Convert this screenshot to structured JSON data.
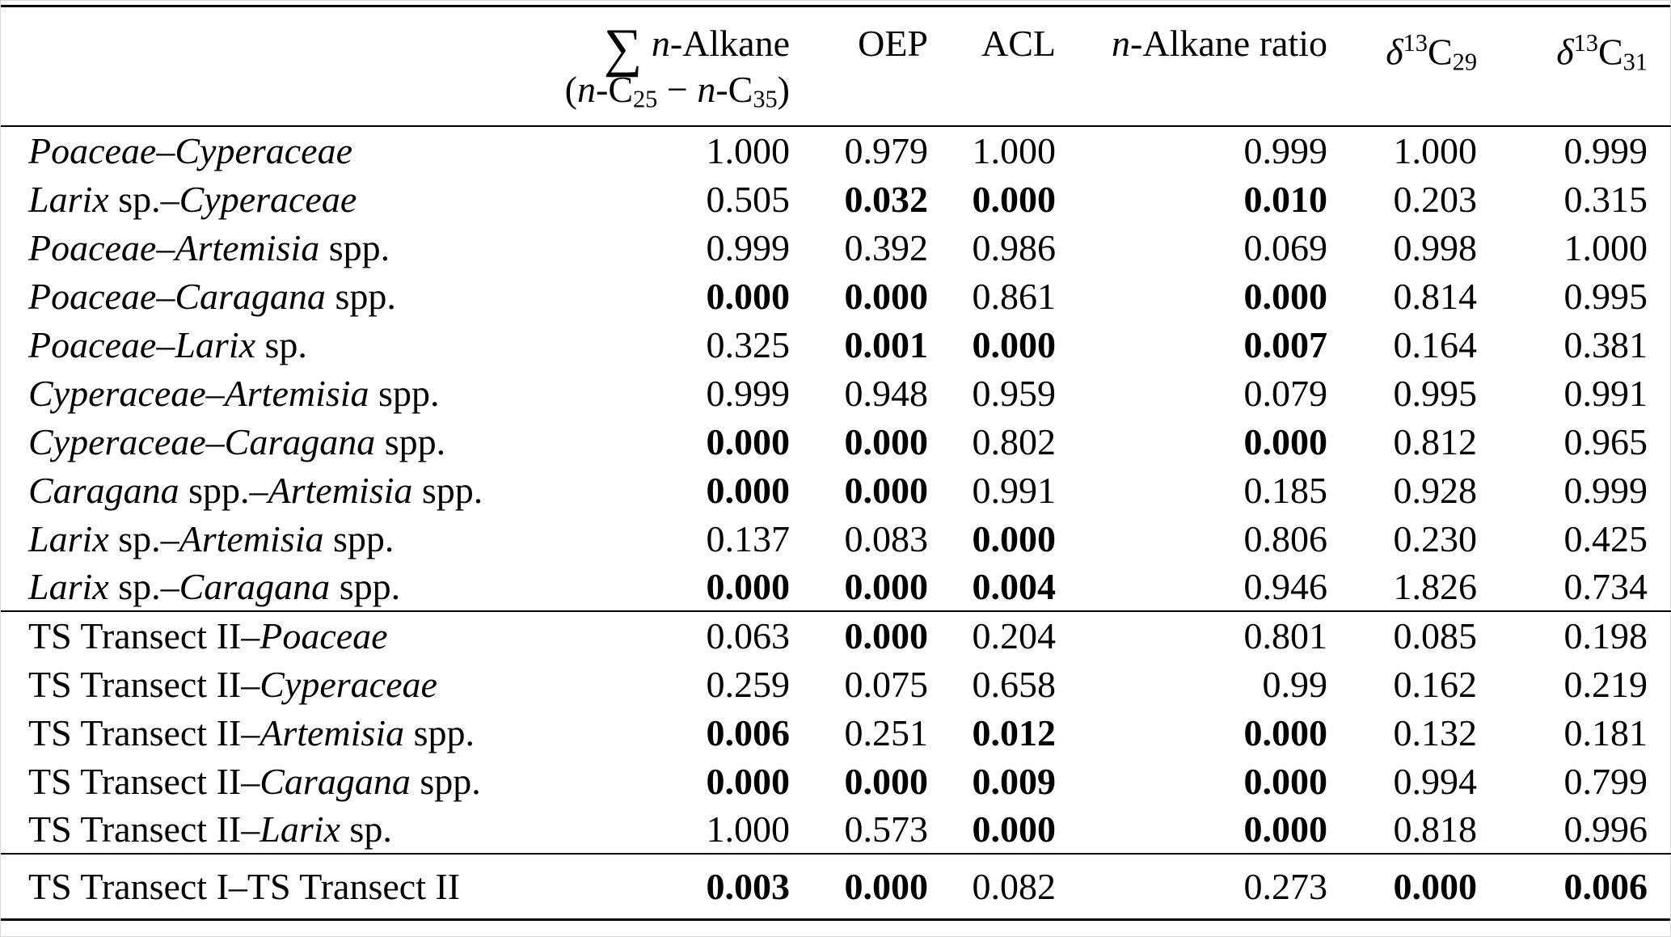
{
  "meta": {
    "background_color": "#ffffff",
    "text_color": "#000000",
    "rule_color": "#000000",
    "significant_style": "bold"
  },
  "table": {
    "column_keys": [
      "comparison_pair",
      "sum_n_alkane",
      "oep",
      "acl",
      "n_alkane_ratio",
      "d13c29",
      "d13c31"
    ],
    "header": {
      "empty": "",
      "sum_line1": [
        {
          "t": "∑",
          "s": "sigma"
        },
        {
          "t": " "
        },
        {
          "t": "n",
          "s": "i"
        },
        {
          "t": "-Alkane"
        }
      ],
      "sum_line2": [
        {
          "t": "("
        },
        {
          "t": "n",
          "s": "i"
        },
        {
          "t": "-C"
        },
        {
          "t": "25",
          "s": "sub"
        },
        {
          "t": " − "
        },
        {
          "t": "n",
          "s": "i"
        },
        {
          "t": "-C"
        },
        {
          "t": "35",
          "s": "sub"
        },
        {
          "t": ")"
        }
      ],
      "oep": [
        {
          "t": "OEP"
        }
      ],
      "acl": [
        {
          "t": "ACL"
        }
      ],
      "ratio": [
        {
          "t": "n",
          "s": "i"
        },
        {
          "t": "-Alkane ratio"
        }
      ],
      "d13c29": [
        {
          "t": "δ",
          "s": "i"
        },
        {
          "t": "13",
          "s": "sup"
        },
        {
          "t": "C"
        },
        {
          "t": "29",
          "s": "sub"
        }
      ],
      "d13c31": [
        {
          "t": "δ",
          "s": "i"
        },
        {
          "t": "13",
          "s": "sup"
        },
        {
          "t": "C"
        },
        {
          "t": "31",
          "s": "sub"
        }
      ]
    },
    "sections": [
      {
        "rows": [
          {
            "label": [
              {
                "t": "Poaceae–Cyperaceae",
                "s": "i"
              }
            ],
            "values": [
              {
                "v": "1.000"
              },
              {
                "v": "0.979"
              },
              {
                "v": "1.000"
              },
              {
                "v": "0.999"
              },
              {
                "v": "1.000"
              },
              {
                "v": "0.999"
              }
            ]
          },
          {
            "label": [
              {
                "t": "Larix",
                "s": "i"
              },
              {
                "t": " sp.–"
              },
              {
                "t": "Cyperaceae",
                "s": "i"
              }
            ],
            "values": [
              {
                "v": "0.505"
              },
              {
                "v": "0.032",
                "b": true
              },
              {
                "v": "0.000",
                "b": true
              },
              {
                "v": "0.010",
                "b": true
              },
              {
                "v": "0.203"
              },
              {
                "v": "0.315"
              }
            ]
          },
          {
            "label": [
              {
                "t": "Poaceae–Artemisia",
                "s": "i"
              },
              {
                "t": " spp."
              }
            ],
            "values": [
              {
                "v": "0.999"
              },
              {
                "v": "0.392"
              },
              {
                "v": "0.986"
              },
              {
                "v": "0.069"
              },
              {
                "v": "0.998"
              },
              {
                "v": "1.000"
              }
            ]
          },
          {
            "label": [
              {
                "t": "Poaceae–Caragana",
                "s": "i"
              },
              {
                "t": " spp."
              }
            ],
            "values": [
              {
                "v": "0.000",
                "b": true
              },
              {
                "v": "0.000",
                "b": true
              },
              {
                "v": "0.861"
              },
              {
                "v": "0.000",
                "b": true
              },
              {
                "v": "0.814"
              },
              {
                "v": "0.995"
              }
            ]
          },
          {
            "label": [
              {
                "t": "Poaceae–Larix",
                "s": "i"
              },
              {
                "t": " sp."
              }
            ],
            "values": [
              {
                "v": "0.325"
              },
              {
                "v": "0.001",
                "b": true
              },
              {
                "v": "0.000",
                "b": true
              },
              {
                "v": "0.007",
                "b": true
              },
              {
                "v": "0.164"
              },
              {
                "v": "0.381"
              }
            ]
          },
          {
            "label": [
              {
                "t": "Cyperaceae–Artemisia",
                "s": "i"
              },
              {
                "t": " spp."
              }
            ],
            "values": [
              {
                "v": "0.999"
              },
              {
                "v": "0.948"
              },
              {
                "v": "0.959"
              },
              {
                "v": "0.079"
              },
              {
                "v": "0.995"
              },
              {
                "v": "0.991"
              }
            ]
          },
          {
            "label": [
              {
                "t": "Cyperaceae–Caragana",
                "s": "i"
              },
              {
                "t": " spp."
              }
            ],
            "values": [
              {
                "v": "0.000",
                "b": true
              },
              {
                "v": "0.000",
                "b": true
              },
              {
                "v": "0.802"
              },
              {
                "v": "0.000",
                "b": true
              },
              {
                "v": "0.812"
              },
              {
                "v": "0.965"
              }
            ]
          },
          {
            "label": [
              {
                "t": "Caragana",
                "s": "i"
              },
              {
                "t": " spp.–"
              },
              {
                "t": "Artemisia",
                "s": "i"
              },
              {
                "t": " spp."
              }
            ],
            "values": [
              {
                "v": "0.000",
                "b": true
              },
              {
                "v": "0.000",
                "b": true
              },
              {
                "v": "0.991"
              },
              {
                "v": "0.185"
              },
              {
                "v": "0.928"
              },
              {
                "v": "0.999"
              }
            ]
          },
          {
            "label": [
              {
                "t": "Larix",
                "s": "i"
              },
              {
                "t": " sp.–"
              },
              {
                "t": "Artemisia",
                "s": "i"
              },
              {
                "t": " spp."
              }
            ],
            "values": [
              {
                "v": "0.137"
              },
              {
                "v": "0.083"
              },
              {
                "v": "0.000",
                "b": true
              },
              {
                "v": "0.806"
              },
              {
                "v": "0.230"
              },
              {
                "v": "0.425"
              }
            ]
          },
          {
            "label": [
              {
                "t": "Larix",
                "s": "i"
              },
              {
                "t": " sp.–"
              },
              {
                "t": "Caragana",
                "s": "i"
              },
              {
                "t": " spp."
              }
            ],
            "values": [
              {
                "v": "0.000",
                "b": true
              },
              {
                "v": "0.000",
                "b": true
              },
              {
                "v": "0.004",
                "b": true
              },
              {
                "v": "0.946"
              },
              {
                "v": "1.826"
              },
              {
                "v": "0.734"
              }
            ]
          }
        ]
      },
      {
        "rows": [
          {
            "label": [
              {
                "t": "TS Transect II–"
              },
              {
                "t": "Poaceae",
                "s": "i"
              }
            ],
            "values": [
              {
                "v": "0.063"
              },
              {
                "v": "0.000",
                "b": true
              },
              {
                "v": "0.204"
              },
              {
                "v": "0.801"
              },
              {
                "v": "0.085"
              },
              {
                "v": "0.198"
              }
            ]
          },
          {
            "label": [
              {
                "t": "TS Transect II–"
              },
              {
                "t": "Cyperaceae",
                "s": "i"
              }
            ],
            "values": [
              {
                "v": "0.259"
              },
              {
                "v": "0.075"
              },
              {
                "v": "0.658"
              },
              {
                "v": "0.99"
              },
              {
                "v": "0.162"
              },
              {
                "v": "0.219"
              }
            ]
          },
          {
            "label": [
              {
                "t": "TS Transect II–"
              },
              {
                "t": "Artemisia",
                "s": "i"
              },
              {
                "t": " spp."
              }
            ],
            "values": [
              {
                "v": "0.006",
                "b": true
              },
              {
                "v": "0.251"
              },
              {
                "v": "0.012",
                "b": true
              },
              {
                "v": "0.000",
                "b": true
              },
              {
                "v": "0.132"
              },
              {
                "v": "0.181"
              }
            ]
          },
          {
            "label": [
              {
                "t": "TS Transect II–"
              },
              {
                "t": "Caragana",
                "s": "i"
              },
              {
                "t": " spp."
              }
            ],
            "values": [
              {
                "v": "0.000",
                "b": true
              },
              {
                "v": "0.000",
                "b": true
              },
              {
                "v": "0.009",
                "b": true
              },
              {
                "v": "0.000",
                "b": true
              },
              {
                "v": "0.994"
              },
              {
                "v": "0.799"
              }
            ]
          },
          {
            "label": [
              {
                "t": "TS Transect II–"
              },
              {
                "t": "Larix",
                "s": "i"
              },
              {
                "t": " sp."
              }
            ],
            "values": [
              {
                "v": "1.000"
              },
              {
                "v": "0.573"
              },
              {
                "v": "0.000",
                "b": true
              },
              {
                "v": "0.000",
                "b": true
              },
              {
                "v": "0.818"
              },
              {
                "v": "0.996"
              }
            ]
          }
        ]
      },
      {
        "rows": [
          {
            "label": [
              {
                "t": "TS Transect I–TS Transect II"
              }
            ],
            "values": [
              {
                "v": "0.003",
                "b": true
              },
              {
                "v": "0.000",
                "b": true
              },
              {
                "v": "0.082"
              },
              {
                "v": "0.273"
              },
              {
                "v": "0.000",
                "b": true
              },
              {
                "v": "0.006",
                "b": true
              }
            ]
          }
        ]
      }
    ]
  }
}
